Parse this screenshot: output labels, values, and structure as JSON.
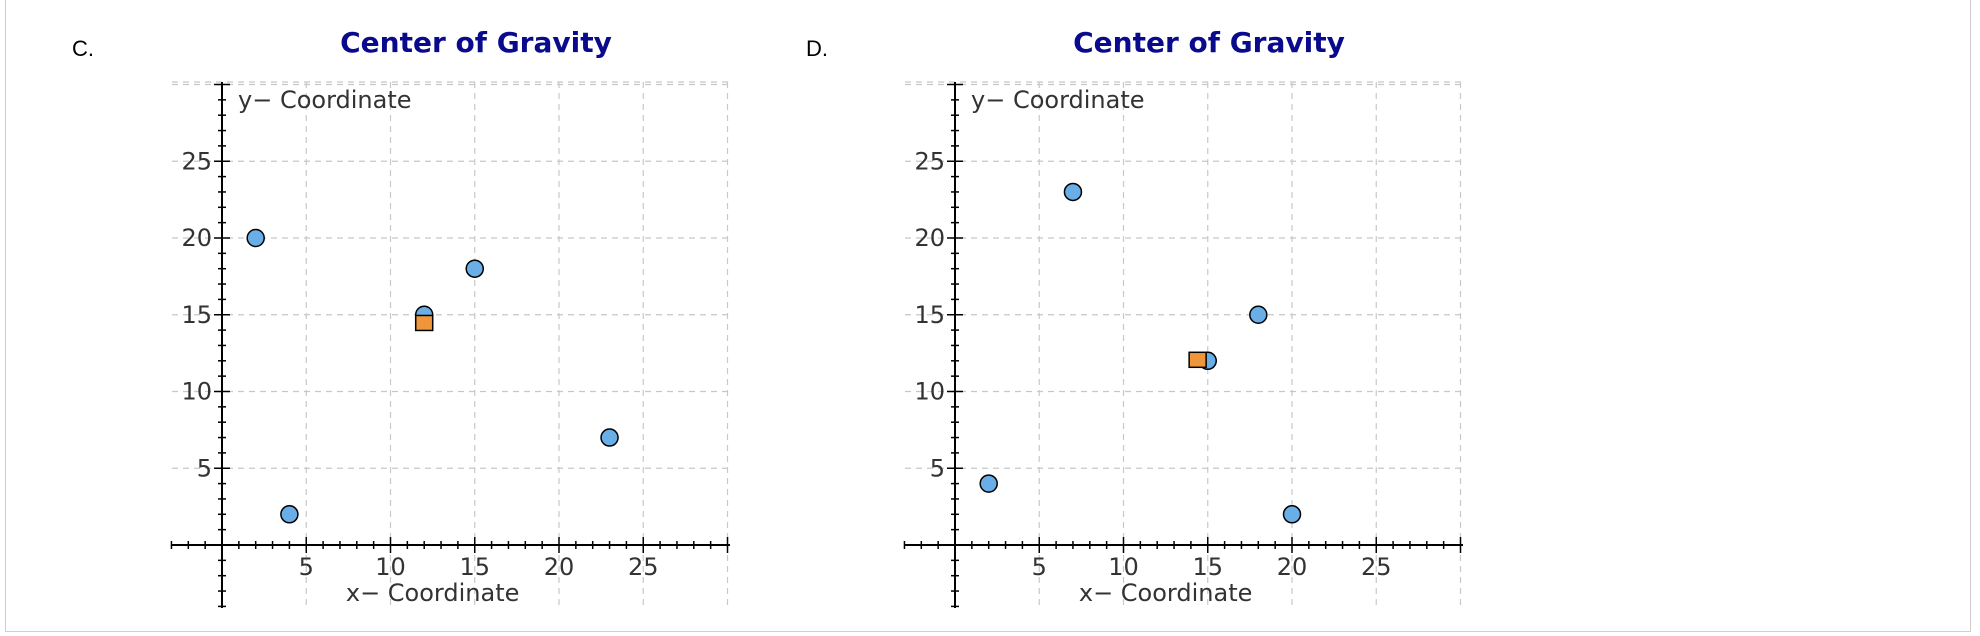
{
  "panels": [
    {
      "label": "C.",
      "chart_data": {
        "type": "scatter",
        "title": "Center of Gravity",
        "xlabel": "x− Coordinate",
        "ylabel": "y− Coordinate",
        "xlim": [
          -3,
          30
        ],
        "ylim": [
          -4,
          30
        ],
        "xticks": [
          5,
          10,
          15,
          20,
          25
        ],
        "yticks": [
          5,
          10,
          15,
          20,
          25
        ],
        "grid": true,
        "series": [
          {
            "marker": "circle",
            "color": "#6aaee8",
            "points": [
              [
                2,
                20
              ],
              [
                4,
                2
              ],
              [
                12,
                15
              ],
              [
                15,
                18
              ],
              [
                23,
                7
              ]
            ]
          },
          {
            "marker": "square",
            "color": "#f0963a",
            "points": [
              [
                12,
                14.4
              ]
            ]
          }
        ]
      }
    },
    {
      "label": "D.",
      "chart_data": {
        "type": "scatter",
        "title": "Center of Gravity",
        "xlabel": "x− Coordinate",
        "ylabel": "y− Coordinate",
        "xlim": [
          -3,
          30
        ],
        "ylim": [
          -4,
          30
        ],
        "xticks": [
          5,
          10,
          15,
          20,
          25
        ],
        "yticks": [
          5,
          10,
          15,
          20,
          25
        ],
        "grid": true,
        "series": [
          {
            "marker": "circle",
            "color": "#6aaee8",
            "points": [
              [
                2,
                4
              ],
              [
                7,
                23
              ],
              [
                15,
                12
              ],
              [
                18,
                15
              ],
              [
                20,
                2
              ]
            ]
          },
          {
            "marker": "square",
            "color": "#f0963a",
            "points": [
              [
                14.4,
                12
              ]
            ]
          }
        ]
      }
    }
  ]
}
